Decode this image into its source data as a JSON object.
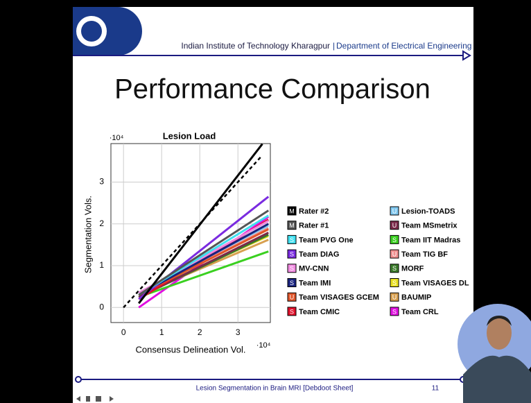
{
  "header": {
    "institute": "Indian Institute of Technology Kharagpur",
    "department": "Department of Electrical Engineering"
  },
  "slide_title": "Performance Comparison",
  "footer": {
    "text": "Lesion Segmentation in Brain MRI [Debdoot Sheet]",
    "page": "11"
  },
  "chart_data": {
    "type": "line",
    "title": "Lesion Load",
    "x_label": "Consensus Delineation Vol.",
    "y_label": "Segmentation Vols.",
    "x_multiplier": "·10⁴",
    "y_multiplier": "·10⁴",
    "xlim": [
      -0.33,
      3.85
    ],
    "ylim": [
      -0.36,
      3.92
    ],
    "xticks": [
      0,
      1,
      2,
      3
    ],
    "yticks": [
      0,
      1,
      2,
      3
    ],
    "grid": true,
    "identity_line": {
      "x": [
        0,
        3.6
      ],
      "y": [
        0,
        3.6
      ],
      "color": "#000000",
      "style": "dashed"
    },
    "series": [
      {
        "name": "Rater #2",
        "badge": "M",
        "color": "#000000",
        "x": [
          0.4,
          3.64
        ],
        "values": [
          0.1,
          3.91
        ]
      },
      {
        "name": "Rater #1",
        "badge": "M",
        "color": "#555555",
        "x": [
          0.4,
          3.8
        ],
        "values": [
          0.3,
          2.32
        ]
      },
      {
        "name": "Team PVG One",
        "badge": "S",
        "color": "#40e0f0",
        "x": [
          0.4,
          3.8
        ],
        "values": [
          0.3,
          2.2
        ]
      },
      {
        "name": "Team DIAG",
        "badge": "S",
        "color": "#7a2be0",
        "x": [
          0.4,
          3.8
        ],
        "values": [
          0.2,
          2.65
        ]
      },
      {
        "name": "MV-CNN",
        "badge": "S",
        "color": "#f08ae0",
        "x": [
          0.4,
          3.8
        ],
        "values": [
          0.35,
          2.07
        ]
      },
      {
        "name": "Team IMI",
        "badge": "S",
        "color": "#1a237e",
        "x": [
          0.4,
          3.8
        ],
        "values": [
          0.3,
          2.0
        ]
      },
      {
        "name": "Team VISAGES GCEM",
        "badge": "U",
        "color": "#e0552a",
        "x": [
          0.4,
          3.8
        ],
        "values": [
          0.3,
          1.87
        ]
      },
      {
        "name": "Team CMIC",
        "badge": "S",
        "color": "#e0102a",
        "x": [
          0.4,
          3.8
        ],
        "values": [
          0.2,
          2.1
        ]
      },
      {
        "name": "Lesion-TOADS",
        "badge": "U",
        "color": "#80c8f0",
        "x": [
          0.4,
          3.8
        ],
        "values": [
          0.35,
          1.96
        ]
      },
      {
        "name": "Team MSmetrix",
        "badge": "U",
        "color": "#7a2a4a",
        "x": [
          0.4,
          3.8
        ],
        "values": [
          0.25,
          1.79
        ]
      },
      {
        "name": "Team IIT Madras",
        "badge": "S",
        "color": "#3ad020",
        "x": [
          0.4,
          3.8
        ],
        "values": [
          0.25,
          1.34
        ]
      },
      {
        "name": "Team TIG BF",
        "badge": "U",
        "color": "#f09090",
        "x": [
          0.4,
          3.8
        ],
        "values": [
          0.3,
          1.9
        ]
      },
      {
        "name": "MORF",
        "badge": "S",
        "color": "#3a7a2a",
        "x": [
          0.4,
          3.8
        ],
        "values": [
          0.25,
          1.74
        ]
      },
      {
        "name": "Team VISAGES DL",
        "badge": "S",
        "color": "#e8e020",
        "x": [
          0.4,
          3.8
        ],
        "values": [
          0.3,
          1.71
        ]
      },
      {
        "name": "BAUMIP",
        "badge": "U",
        "color": "#d8a050",
        "x": [
          0.4,
          3.8
        ],
        "values": [
          0.3,
          1.62
        ]
      },
      {
        "name": "Team CRL",
        "badge": "S",
        "color": "#e010e0",
        "x": [
          0.4,
          3.8
        ],
        "values": [
          0.0,
          2.17
        ]
      }
    ]
  }
}
